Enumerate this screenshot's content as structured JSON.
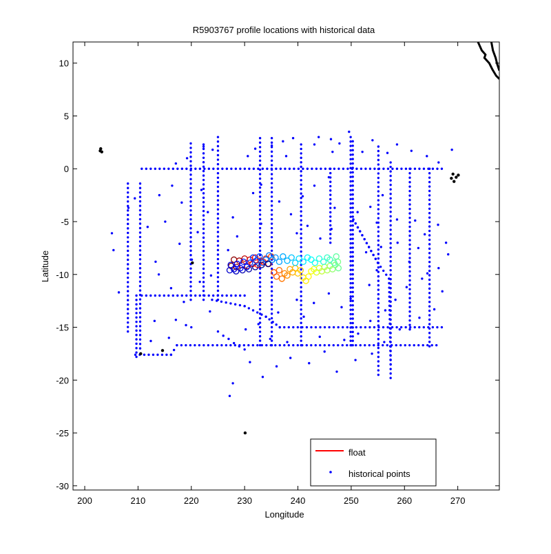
{
  "chart_data": {
    "type": "scatter",
    "title": "R5903767 profile locations with historical data",
    "xlabel": "Longitude",
    "ylabel": "Latitude",
    "xlim": [
      197.8,
      277.8
    ],
    "ylim": [
      -30.4,
      12.0
    ],
    "xticks": [
      200,
      210,
      220,
      230,
      240,
      250,
      260,
      270
    ],
    "yticks": [
      10,
      5,
      0,
      -5,
      -10,
      -15,
      -20,
      -25,
      -30
    ],
    "grid": false,
    "legend": {
      "position": "bottom-right",
      "entries": [
        {
          "label": "float",
          "color": "#ff0000",
          "marker": "line"
        },
        {
          "label": "historical points",
          "color": "#0000ff",
          "marker": "dot"
        }
      ]
    },
    "colors": {
      "historical": "#0000ff",
      "coast": "#000000"
    },
    "float_colormap": "jet",
    "series": [
      {
        "name": "float",
        "kind": "float-track",
        "points": [
          [
            227.5,
            -9.2
          ],
          [
            228.0,
            -8.6
          ],
          [
            228.5,
            -9.3
          ],
          [
            229.0,
            -8.7
          ],
          [
            229.5,
            -9.1
          ],
          [
            230.0,
            -8.5
          ],
          [
            230.5,
            -9.2
          ],
          [
            231.0,
            -8.6
          ],
          [
            231.5,
            -9.0
          ],
          [
            232.0,
            -8.4
          ],
          [
            232.5,
            -9.1
          ],
          [
            233.0,
            -8.7
          ],
          [
            233.5,
            -8.8
          ],
          [
            234.0,
            -8.5
          ],
          [
            234.5,
            -9.0
          ],
          [
            235.0,
            -8.3
          ],
          [
            235.5,
            -9.8
          ],
          [
            236.0,
            -10.2
          ],
          [
            236.5,
            -9.6
          ],
          [
            237.0,
            -10.4
          ],
          [
            237.5,
            -9.9
          ],
          [
            238.0,
            -10.1
          ],
          [
            238.5,
            -9.5
          ],
          [
            239.0,
            -9.8
          ],
          [
            239.5,
            -9.4
          ],
          [
            240.0,
            -9.9
          ],
          [
            240.5,
            -9.6
          ],
          [
            241.0,
            -10.3
          ],
          [
            241.5,
            -10.6
          ],
          [
            242.0,
            -10.2
          ],
          [
            242.5,
            -9.7
          ],
          [
            243.0,
            -9.5
          ],
          [
            243.5,
            -9.8
          ],
          [
            244.0,
            -9.4
          ],
          [
            244.5,
            -9.7
          ],
          [
            245.0,
            -9.3
          ],
          [
            245.5,
            -9.6
          ],
          [
            246.0,
            -9.2
          ],
          [
            246.5,
            -9.5
          ],
          [
            247.0,
            -9.1
          ],
          [
            247.5,
            -8.8
          ],
          [
            247.6,
            -9.4
          ],
          [
            247.2,
            -8.3
          ],
          [
            246.8,
            -8.9
          ],
          [
            246.0,
            -8.6
          ],
          [
            245.5,
            -8.4
          ],
          [
            244.8,
            -8.8
          ],
          [
            244.0,
            -8.5
          ],
          [
            243.2,
            -8.9
          ],
          [
            242.5,
            -8.6
          ],
          [
            241.8,
            -8.4
          ],
          [
            241.0,
            -8.8
          ],
          [
            240.2,
            -8.5
          ],
          [
            239.5,
            -8.9
          ],
          [
            238.8,
            -8.4
          ],
          [
            238.0,
            -8.7
          ],
          [
            237.2,
            -8.3
          ],
          [
            236.5,
            -8.8
          ],
          [
            235.8,
            -8.4
          ],
          [
            235.2,
            -8.6
          ],
          [
            234.6,
            -8.2
          ],
          [
            234.0,
            -8.6
          ],
          [
            233.4,
            -8.9
          ],
          [
            232.8,
            -8.3
          ],
          [
            232.2,
            -8.7
          ],
          [
            231.6,
            -8.4
          ],
          [
            231.0,
            -8.9
          ],
          [
            230.4,
            -9.3
          ],
          [
            229.8,
            -8.8
          ],
          [
            229.2,
            -9.4
          ],
          [
            228.6,
            -9.0
          ],
          [
            228.0,
            -9.5
          ],
          [
            227.4,
            -9.1
          ],
          [
            227.2,
            -9.6
          ],
          [
            228.4,
            -9.7
          ],
          [
            229.6,
            -9.6
          ],
          [
            230.8,
            -9.5
          ],
          [
            232.0,
            -9.3
          ],
          [
            233.2,
            -9.1
          ],
          [
            234.4,
            -9.0
          ]
        ]
      },
      {
        "name": "historical points",
        "kind": "historical",
        "points": [
          [
            225,
            -15.4
          ],
          [
            226,
            -15.8
          ],
          [
            227,
            -16.1
          ],
          [
            228,
            -16.5
          ],
          [
            229,
            -16.8
          ],
          [
            230,
            -17.1
          ],
          [
            227.8,
            -20.3
          ],
          [
            227.2,
            -21.5
          ],
          [
            249.6,
            3.5
          ],
          [
            243.9,
            3.0
          ],
          [
            237.8,
            1.2
          ],
          [
            233.1,
            -1.5
          ],
          [
            231.6,
            -2.3
          ],
          [
            243.1,
            -1.6
          ],
          [
            245.8,
            -0.8
          ],
          [
            246.5,
            1.6
          ],
          [
            240.9,
            -2.6
          ],
          [
            238.7,
            -4.3
          ],
          [
            246.9,
            -3.7
          ],
          [
            251.2,
            -4.1
          ],
          [
            253.6,
            -3.6
          ],
          [
            255.9,
            -2.5
          ],
          [
            254.8,
            -5.1
          ],
          [
            258.6,
            -4.8
          ],
          [
            262.0,
            -4.9
          ],
          [
            263.8,
            -6.2
          ],
          [
            266.3,
            -5.3
          ],
          [
            267.8,
            -7.0
          ],
          [
            268.2,
            -8.1
          ],
          [
            266.4,
            -9.4
          ],
          [
            263.3,
            -10.4
          ],
          [
            260.4,
            -11.2
          ],
          [
            258.3,
            -12.4
          ],
          [
            256.4,
            -13.4
          ],
          [
            253.6,
            -14.4
          ],
          [
            251.3,
            -15.6
          ],
          [
            248.7,
            -16.2
          ],
          [
            245.0,
            -17.3
          ],
          [
            242.1,
            -18.4
          ],
          [
            238.6,
            -17.9
          ],
          [
            236.0,
            -18.7
          ],
          [
            233.4,
            -19.7
          ],
          [
            231.0,
            -18.3
          ],
          [
            230.2,
            -15.2
          ],
          [
            223.7,
            -10.1
          ],
          [
            221.6,
            -10.7
          ],
          [
            218.6,
            -12.6
          ],
          [
            216.2,
            -11.3
          ],
          [
            213.9,
            -10.0
          ],
          [
            213.1,
            -14.4
          ],
          [
            212.4,
            -16.3
          ],
          [
            215.8,
            -16.0
          ],
          [
            219.0,
            -14.8
          ],
          [
            205.1,
            -6.1
          ],
          [
            205.4,
            -7.7
          ],
          [
            208.2,
            -3.7
          ],
          [
            206.4,
            -11.7
          ],
          [
            215.1,
            -5.0
          ],
          [
            213.3,
            -8.8
          ],
          [
            217.8,
            -7.1
          ],
          [
            220.1,
            -8.6
          ],
          [
            221.2,
            -6.0
          ],
          [
            223.1,
            -4.1
          ],
          [
            227.8,
            -4.6
          ],
          [
            228.6,
            -6.4
          ],
          [
            226.9,
            -7.7
          ],
          [
            233.1,
            -5.2
          ],
          [
            236.5,
            -3.1
          ],
          [
            239.8,
            -6.1
          ],
          [
            241.8,
            -5.4
          ],
          [
            244.2,
            -6.6
          ],
          [
            246.3,
            -5.7
          ],
          [
            243.0,
            -12.7
          ],
          [
            241.1,
            -14.0
          ],
          [
            239.8,
            -12.4
          ],
          [
            236.3,
            -13.6
          ],
          [
            245.8,
            -11.8
          ],
          [
            248.2,
            -13.1
          ],
          [
            249.9,
            -12.3
          ],
          [
            253.4,
            -11.0
          ],
          [
            254.8,
            -9.6
          ],
          [
            252.8,
            -7.9
          ],
          [
            255.6,
            -7.4
          ],
          [
            258.7,
            -7.0
          ],
          [
            260.9,
            -8.8
          ],
          [
            262.6,
            -7.5
          ],
          [
            264.3,
            -9.9
          ],
          [
            267.1,
            -11.6
          ],
          [
            265.6,
            -13.3
          ],
          [
            262.8,
            -14.1
          ],
          [
            259.1,
            -15.2
          ],
          [
            256.2,
            -16.4
          ],
          [
            253.9,
            -17.5
          ],
          [
            250.8,
            -18.1
          ],
          [
            247.3,
            -19.2
          ],
          [
            244.1,
            -15.9
          ],
          [
            238.0,
            -16.4
          ],
          [
            234.8,
            -16.1
          ],
          [
            232.6,
            -14.7
          ],
          [
            223.5,
            -13.5
          ],
          [
            220.0,
            -15.0
          ],
          [
            217.1,
            -14.3
          ],
          [
            211.8,
            -5.5
          ],
          [
            209.4,
            -2.8
          ],
          [
            214.0,
            -2.5
          ],
          [
            216.4,
            -1.6
          ],
          [
            218.2,
            -3.2
          ],
          [
            221.9,
            -2.0
          ],
          [
            224.0,
            1.8
          ],
          [
            222.3,
            2.1
          ],
          [
            219.2,
            1.0
          ],
          [
            217.1,
            0.5
          ],
          [
            230.6,
            1.2
          ],
          [
            232.0,
            1.9
          ],
          [
            235.1,
            2.2
          ],
          [
            237.2,
            2.6
          ],
          [
            239.1,
            2.9
          ],
          [
            243.1,
            2.3
          ],
          [
            246.2,
            2.8
          ],
          [
            247.8,
            2.4
          ],
          [
            252.1,
            1.6
          ],
          [
            254.0,
            2.7
          ],
          [
            256.8,
            1.5
          ],
          [
            258.6,
            2.3
          ],
          [
            261.3,
            1.7
          ],
          [
            264.2,
            1.2
          ],
          [
            266.4,
            0.6
          ],
          [
            268.9,
            1.8
          ]
        ]
      },
      {
        "name": "historical lines",
        "kind": "historical-lines",
        "lines": [
          [
            [
              210.7,
              0.0
            ],
            [
              267.0,
              0.0
            ]
          ],
          [
            [
              210.7,
              -12.0
            ],
            [
              230.0,
              -12.0
            ]
          ],
          [
            [
              223.9,
              -12.4
            ],
            [
              230.0,
              -13.0
            ],
            [
              234.0,
              -14.0
            ],
            [
              236.6,
              -15.0
            ],
            [
              267.0,
              -15.0
            ]
          ],
          [
            [
              209.5,
              -17.6
            ],
            [
              216.2,
              -17.6
            ],
            [
              217.3,
              -16.7
            ],
            [
              266.0,
              -16.7
            ]
          ],
          [
            [
              209.7,
              -12.0
            ],
            [
              209.7,
              -17.8
            ]
          ],
          [
            [
              208.1,
              -1.4
            ],
            [
              208.1,
              -15.4
            ]
          ],
          [
            [
              210.4,
              -1.4
            ],
            [
              210.4,
              -17.0
            ]
          ],
          [
            [
              219.9,
              2.4
            ],
            [
              219.9,
              -12.4
            ]
          ],
          [
            [
              222.3,
              2.3
            ],
            [
              222.3,
              -12.4
            ]
          ],
          [
            [
              225.0,
              3.0
            ],
            [
              225.0,
              -12.4
            ]
          ],
          [
            [
              232.9,
              2.9
            ],
            [
              232.9,
              -16.7
            ]
          ],
          [
            [
              235.1,
              2.9
            ],
            [
              235.1,
              -16.7
            ]
          ],
          [
            [
              240.6,
              2.3
            ],
            [
              240.6,
              -16.7
            ]
          ],
          [
            [
              249.9,
              3.0
            ],
            [
              249.9,
              -16.7
            ]
          ],
          [
            [
              250.3,
              2.6
            ],
            [
              250.3,
              -16.7
            ]
          ],
          [
            [
              255.1,
              2.1
            ],
            [
              255.1,
              -19.5
            ]
          ],
          [
            [
              257.4,
              0.6
            ],
            [
              257.4,
              -19.8
            ]
          ],
          [
            [
              261.0,
              0.0
            ],
            [
              261.0,
              -15.2
            ]
          ],
          [
            [
              264.7,
              0.0
            ],
            [
              264.7,
              -16.8
            ]
          ],
          [
            [
              250.4,
              -4.8
            ],
            [
              255.0,
              -8.9
            ],
            [
              257.1,
              -10.4
            ],
            [
              257.4,
              -18.5
            ]
          ],
          [
            [
              250.4,
              -4.8
            ],
            [
              255.0,
              -8.9
            ]
          ],
          [
            [
              246.1,
              0.0
            ],
            [
              246.1,
              -7.0
            ]
          ]
        ]
      },
      {
        "name": "coast and island markers",
        "kind": "coast",
        "points": [
          [
            202.9,
            1.7
          ],
          [
            203.0,
            1.9
          ],
          [
            203.2,
            1.6
          ],
          [
            220.2,
            -8.9
          ],
          [
            210.5,
            -17.5
          ],
          [
            214.6,
            -17.2
          ],
          [
            230.1,
            -25.0
          ],
          [
            269.1,
            -0.5
          ],
          [
            269.7,
            -0.8
          ],
          [
            269.3,
            -1.2
          ],
          [
            268.8,
            -0.9
          ],
          [
            270.1,
            -0.6
          ]
        ],
        "lines": [
          [
            [
              273.8,
              12.0
            ],
            [
              274.5,
              11.2
            ],
            [
              275.2,
              10.8
            ],
            [
              275.0,
              10.5
            ],
            [
              275.9,
              10.0
            ],
            [
              276.5,
              9.4
            ],
            [
              277.2,
              8.8
            ],
            [
              277.8,
              8.5
            ]
          ],
          [
            [
              276.3,
              12.0
            ],
            [
              276.6,
              11.2
            ],
            [
              277.1,
              10.5
            ],
            [
              277.4,
              9.9
            ],
            [
              277.8,
              9.3
            ]
          ]
        ]
      }
    ]
  }
}
